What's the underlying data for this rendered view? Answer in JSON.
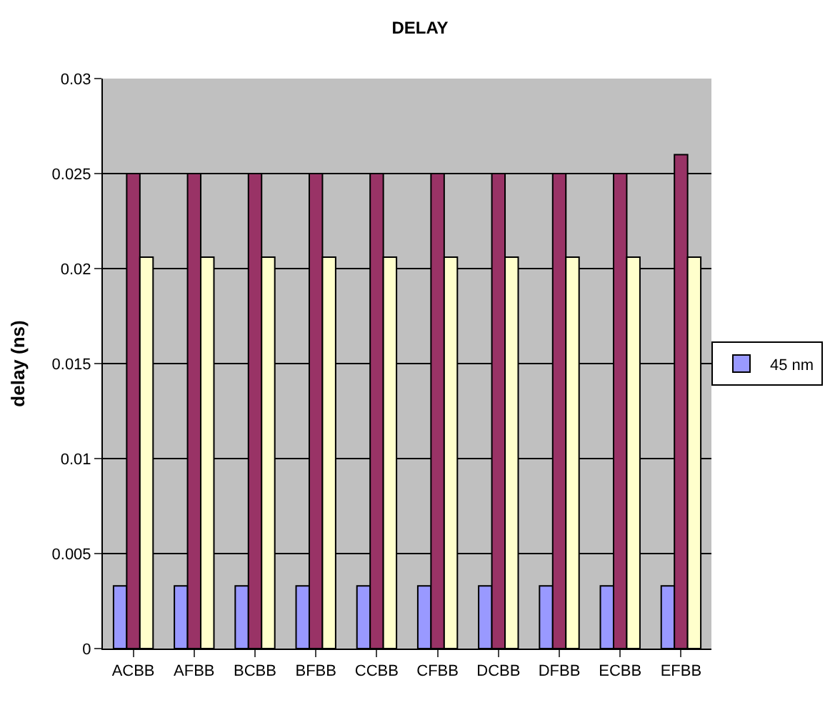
{
  "chart_data": {
    "type": "bar",
    "title": "DELAY",
    "ylabel": "delay (ns)",
    "categories": [
      "ACBB",
      "AFBB",
      "BCBB",
      "BFBB",
      "CCBB",
      "CFBB",
      "DCBB",
      "DFBB",
      "ECBB",
      "EFBB"
    ],
    "series": [
      {
        "name": "45 nm",
        "color": "#9999ff",
        "values": [
          0.0033,
          0.0033,
          0.0033,
          0.0033,
          0.0033,
          0.0033,
          0.0033,
          0.0033,
          0.0033,
          0.0033
        ]
      },
      {
        "color": "#993366",
        "values": [
          0.025,
          0.025,
          0.025,
          0.025,
          0.025,
          0.025,
          0.025,
          0.025,
          0.025,
          0.026
        ]
      },
      {
        "color": "#ffffcc",
        "values": [
          0.0206,
          0.0206,
          0.0206,
          0.0206,
          0.0206,
          0.0206,
          0.0206,
          0.0206,
          0.0206,
          0.0206
        ]
      }
    ],
    "ylim": [
      0,
      0.03
    ],
    "yticks": [
      0,
      0.005,
      0.01,
      0.015,
      0.02,
      0.025,
      0.03
    ],
    "grid": "y",
    "legend": "right"
  }
}
